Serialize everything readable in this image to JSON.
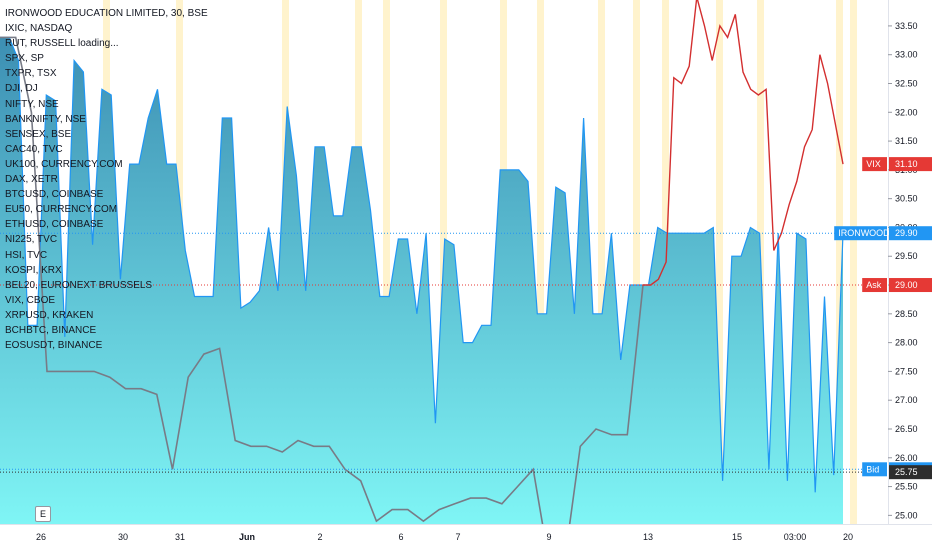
{
  "legend": {
    "title": "IRONWOOD EDUCATION LIMITED, 30, BSE",
    "symbols": [
      "IXIC, NASDAQ",
      "RUT, RUSSELL loading...",
      "SPX, SP",
      "TXPR, TSX",
      "DJI, DJ",
      "NIFTY, NSE",
      "BANKNIFTY, NSE",
      "SENSEX, BSE",
      "CAC40, TVC",
      "UK100, CURRENCY.COM",
      "DAX, XETR",
      "BTCUSD, COINBASE",
      "EU50, CURRENCY.COM",
      "ETHUSD, COINBASE",
      "NI225, TVC",
      "HSI, TVC",
      "KOSPI, KRX",
      "BEL20, EURONEXT BRUSSELS",
      "VIX, CBOE",
      "XRPUSD, KRAKEN",
      "BCHBTC, BINANCE",
      "EOSUSDT, BINANCE"
    ]
  },
  "event_badge": "E",
  "colors": {
    "area_top": "#3d8fb3",
    "area_bottom": "#7ff5f5",
    "main_line": "#2196f3",
    "red_line": "#d32f2f",
    "gray_line": "#787b86",
    "session_band": "#fff3cd",
    "ask": "#e53935",
    "bid": "#2196f3",
    "vix": "#e53935",
    "last": "#2d2d2d",
    "axis_text": "#131722"
  },
  "chart_data": {
    "type": "area",
    "title": "IRONWOOD EDUCATION LIMITED, 30, BSE",
    "xlabel": "",
    "ylabel": "",
    "ylim": [
      24.85,
      33.95
    ],
    "y_ticks": [
      25.0,
      25.5,
      26.0,
      26.5,
      27.0,
      27.5,
      28.0,
      28.5,
      29.0,
      29.5,
      30.0,
      30.5,
      31.0,
      31.5,
      32.0,
      32.5,
      33.0,
      33.5
    ],
    "y_tick_labels": [
      "25.00",
      "25.50",
      "26.00",
      "26.50",
      "27.00",
      "27.50",
      "28.00",
      "28.50",
      "29.00",
      "29.50",
      "30.00",
      "30.50",
      "31.00",
      "31.50",
      "32.00",
      "32.50",
      "33.00",
      "33.50"
    ],
    "x_ticks": [
      "26",
      "30",
      "31",
      "Jun",
      "2",
      "6",
      "7",
      "9",
      "13",
      "15",
      "03:00",
      "20"
    ],
    "grid": false,
    "session_bands": 15,
    "series": [
      {
        "name": "IRONWOOD",
        "style": "area",
        "values": [
          33.3,
          33.3,
          32.9,
          28.3,
          28.3,
          32.3,
          32.2,
          28.1,
          32.9,
          32.7,
          29.7,
          32.4,
          32.3,
          29.1,
          31.1,
          31.1,
          31.9,
          32.4,
          31.1,
          31.1,
          29.6,
          28.8,
          28.8,
          28.8,
          31.9,
          31.9,
          28.6,
          28.7,
          28.9,
          30.0,
          28.9,
          32.1,
          30.9,
          28.9,
          31.4,
          31.4,
          30.2,
          30.2,
          31.4,
          31.4,
          30.3,
          28.8,
          28.8,
          29.8,
          29.8,
          28.5,
          29.9,
          26.6,
          29.8,
          29.7,
          28.0,
          28.0,
          28.3,
          28.3,
          31.0,
          31.0,
          31.0,
          30.8,
          28.5,
          28.5,
          30.7,
          30.6,
          28.5,
          31.9,
          28.5,
          28.5,
          29.9,
          27.7,
          29.0,
          29.0,
          29.0,
          30.0,
          29.9,
          29.9,
          29.9,
          29.9,
          29.9,
          30.0,
          25.6,
          29.5,
          29.5,
          30.0,
          29.9,
          25.8,
          29.9,
          25.6,
          29.9,
          29.8,
          25.4,
          28.8,
          25.7,
          29.9
        ]
      },
      {
        "name": "VIX",
        "style": "line",
        "values": [
          29.0,
          29.0,
          29.1,
          29.4,
          32.6,
          32.5,
          32.8,
          34.0,
          33.5,
          32.9,
          33.5,
          33.3,
          33.7,
          32.7,
          32.4,
          32.3,
          32.4,
          29.6,
          29.9,
          30.4,
          30.8,
          31.4,
          31.7,
          33.0,
          32.5,
          31.8,
          31.1
        ]
      },
      {
        "name": "EOSUSDT",
        "style": "line",
        "values": [
          33.3,
          33.3,
          32.0,
          27.5,
          27.5,
          27.5,
          27.5,
          27.4,
          27.2,
          27.2,
          27.1,
          25.8,
          27.4,
          27.8,
          27.9,
          26.3,
          26.2,
          26.2,
          26.1,
          26.3,
          26.2,
          26.2,
          25.8,
          25.6,
          24.9,
          25.1,
          25.1,
          24.9,
          25.1,
          25.2,
          25.3,
          25.3,
          25.2,
          25.5,
          25.8,
          24.2,
          24.2,
          26.2,
          26.5,
          26.4,
          26.4,
          29.0
        ]
      }
    ]
  },
  "price_tags": [
    {
      "name": "VIX",
      "label": "VIX",
      "value": "31.10"
    },
    {
      "name": "IRONWOOD",
      "label": "IRONWOOD",
      "value": "29.90"
    },
    {
      "name": "Ask",
      "label": "Ask",
      "value": "29.00"
    },
    {
      "name": "Bid",
      "label": "Bid",
      "value": "25.80"
    },
    {
      "name": "Last",
      "label": "",
      "value": "25.75"
    }
  ]
}
